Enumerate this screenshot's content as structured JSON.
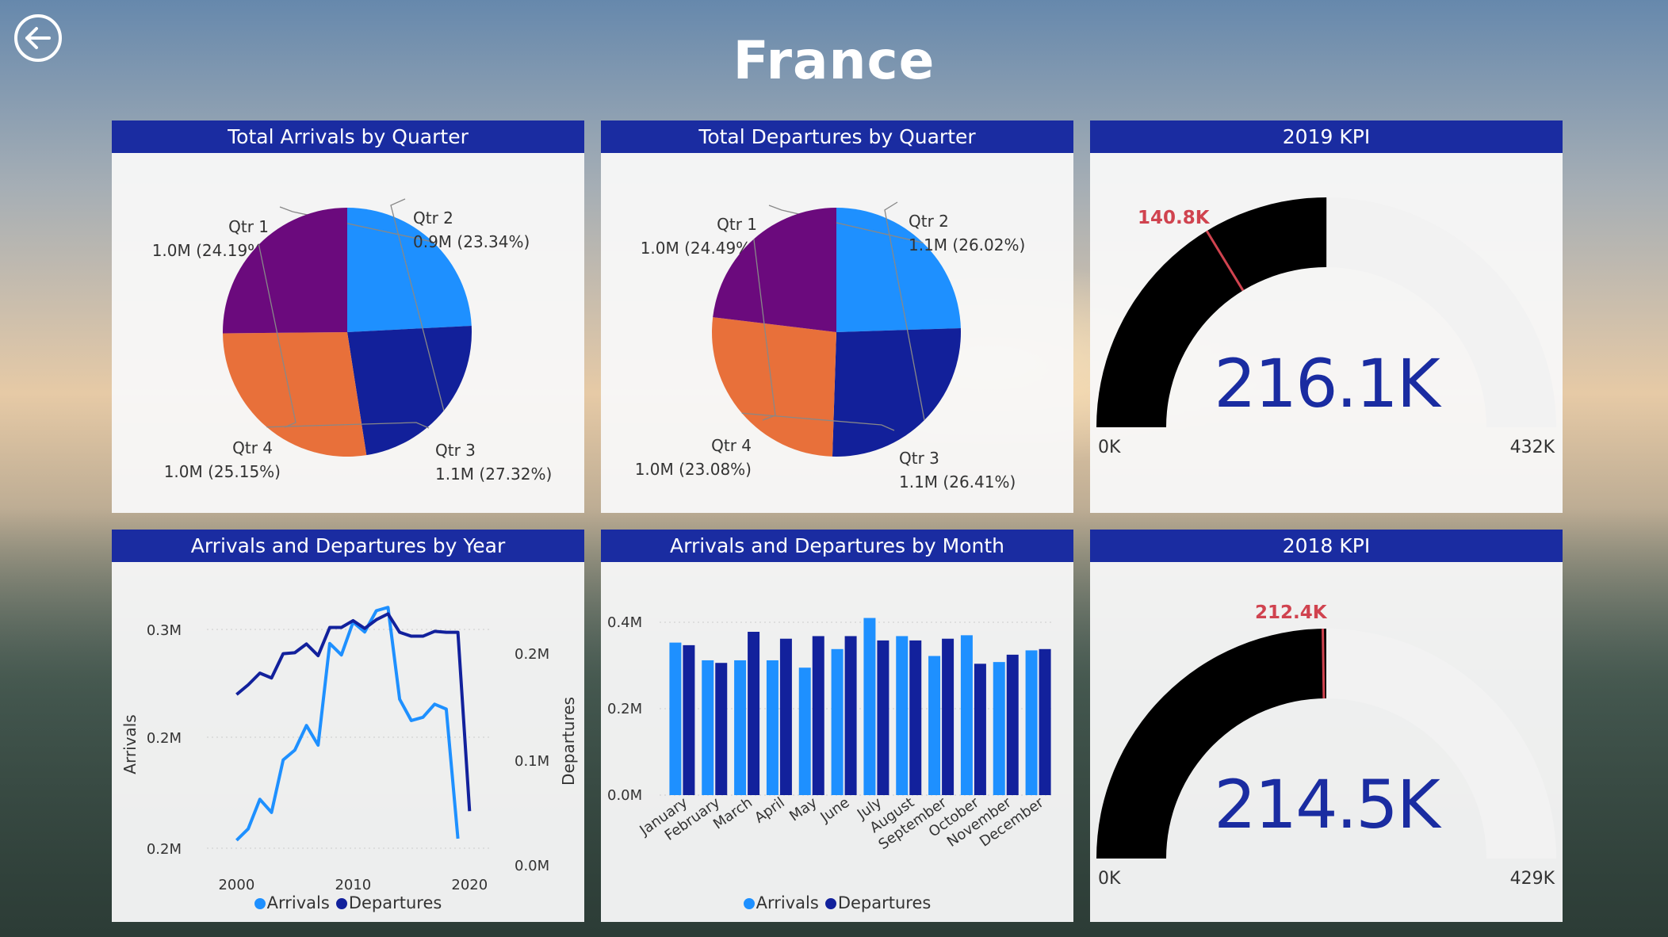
{
  "page": {
    "title": "France"
  },
  "colors": {
    "header": "#1a2ca1",
    "arrivals": "#1e90ff",
    "departures": "#12219c",
    "qtr1": "#1e90ff",
    "qtr2": "#12209a",
    "qtr3": "#e8703a",
    "qtr4": "#6b0a7d",
    "gauge_fill": "#000000",
    "gauge_track": "#f2f2f2",
    "target": "#d0434f",
    "kpi_value": "#1a2ca1"
  },
  "icons": {
    "back": "back-arrow-icon"
  },
  "legend": {
    "arrivals": "Arrivals",
    "departures": "Departures"
  },
  "chart_data": [
    {
      "id": "arrivals-quarter",
      "type": "pie",
      "title": "Total Arrivals by Quarter",
      "slices": [
        {
          "label": "Qtr 1",
          "value_label": "1.0M (24.19%)",
          "value": 24.19
        },
        {
          "label": "Qtr 2",
          "value_label": "0.9M (23.34%)",
          "value": 23.34
        },
        {
          "label": "Qtr 3",
          "value_label": "1.1M (27.32%)",
          "value": 27.32
        },
        {
          "label": "Qtr 4",
          "value_label": "1.0M (25.15%)",
          "value": 25.15
        }
      ]
    },
    {
      "id": "departures-quarter",
      "type": "pie",
      "title": "Total Departures by Quarter",
      "slices": [
        {
          "label": "Qtr 1",
          "value_label": "1.0M (24.49%)",
          "value": 24.49
        },
        {
          "label": "Qtr 2",
          "value_label": "1.1M (26.02%)",
          "value": 26.02
        },
        {
          "label": "Qtr 3",
          "value_label": "1.1M (26.41%)",
          "value": 26.41
        },
        {
          "label": "Qtr 4",
          "value_label": "1.0M (23.08%)",
          "value": 23.08
        }
      ]
    },
    {
      "id": "kpi-2019",
      "type": "gauge",
      "title": "2019 KPI",
      "value": 216.1,
      "value_label": "216.1K",
      "min": 0,
      "max": 432,
      "min_label": "0K",
      "max_label": "432K",
      "target": 140.8,
      "target_label": "140.8K"
    },
    {
      "id": "year-line",
      "type": "line",
      "title": "Arrivals and Departures by Year",
      "xlabel": "",
      "ylabel": "Arrivals",
      "y2label": "Departures",
      "x_ticks": [
        "2000",
        "2010",
        "2020"
      ],
      "y_ticks": [
        "0.2M",
        "0.2M",
        "0.3M"
      ],
      "y2_ticks": [
        "0.0M",
        "0.1M",
        "0.2M"
      ],
      "xlim": [
        1998,
        2021
      ],
      "ylim": [
        0.145,
        0.305
      ],
      "y2lim": [
        0,
        0.27
      ],
      "series": [
        {
          "name": "Arrivals",
          "x": [
            2000,
            2001,
            2002,
            2003,
            2004,
            2005,
            2006,
            2007,
            2008,
            2009,
            2010,
            2011,
            2012,
            2013,
            2014,
            2015,
            2016,
            2017,
            2018,
            2019
          ],
          "y": [
            0.145,
            0.152,
            0.17,
            0.162,
            0.194,
            0.2,
            0.215,
            0.203,
            0.265,
            0.258,
            0.278,
            0.272,
            0.285,
            0.287,
            0.231,
            0.218,
            0.22,
            0.228,
            0.225,
            0.146
          ]
        },
        {
          "name": "Departures",
          "x": [
            2000,
            2001,
            2002,
            2003,
            2004,
            2005,
            2006,
            2007,
            2008,
            2009,
            2010,
            2011,
            2012,
            2013,
            2014,
            2015,
            2016,
            2017,
            2018,
            2019,
            2020
          ],
          "y": [
            0.15,
            0.16,
            0.172,
            0.167,
            0.192,
            0.193,
            0.202,
            0.19,
            0.219,
            0.219,
            0.226,
            0.218,
            0.227,
            0.233,
            0.214,
            0.21,
            0.21,
            0.215,
            0.214,
            0.214,
            0.03
          ]
        }
      ]
    },
    {
      "id": "month-bar",
      "type": "bar",
      "title": "Arrivals and Departures by Month",
      "categories": [
        "January",
        "February",
        "March",
        "April",
        "May",
        "June",
        "July",
        "August",
        "September",
        "October",
        "November",
        "December"
      ],
      "y_ticks": [
        "0.0M",
        "0.2M",
        "0.4M"
      ],
      "ylim": [
        0,
        0.4
      ],
      "series": [
        {
          "name": "Arrivals",
          "values": [
            0.353,
            0.312,
            0.312,
            0.312,
            0.295,
            0.338,
            0.41,
            0.368,
            0.322,
            0.37,
            0.308,
            0.335
          ]
        },
        {
          "name": "Departures",
          "values": [
            0.347,
            0.306,
            0.378,
            0.362,
            0.368,
            0.368,
            0.358,
            0.358,
            0.362,
            0.304,
            0.325,
            0.338
          ]
        }
      ]
    },
    {
      "id": "kpi-2018",
      "type": "gauge",
      "title": "2018 KPI",
      "value": 214.5,
      "value_label": "214.5K",
      "min": 0,
      "max": 429,
      "min_label": "0K",
      "max_label": "429K",
      "target": 212.4,
      "target_label": "212.4K"
    }
  ]
}
